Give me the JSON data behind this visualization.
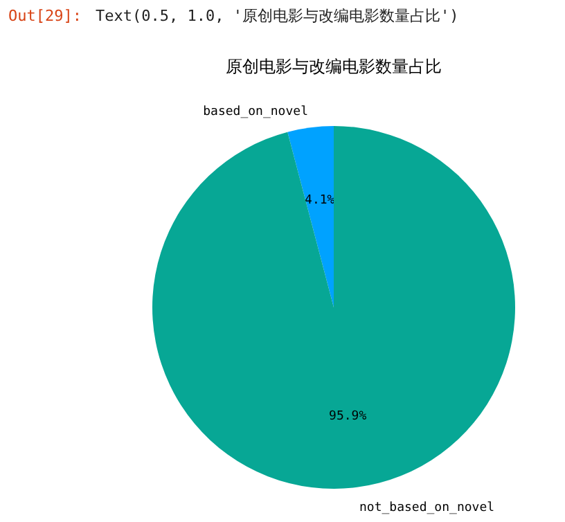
{
  "chart_data": {
    "type": "pie",
    "title": "原创电影与改编电影数量占比",
    "categories": [
      "based_on_novel",
      "not_based_on_novel"
    ],
    "values": [
      4.1,
      95.9
    ],
    "colors": [
      "#00a2ff",
      "#07a795"
    ],
    "value_labels": [
      "4.1%",
      "95.9%"
    ],
    "annotations": [
      "Out[29]:",
      "Text(0.5, 1.0, '原创电影与改编电影数量占比')"
    ]
  }
}
